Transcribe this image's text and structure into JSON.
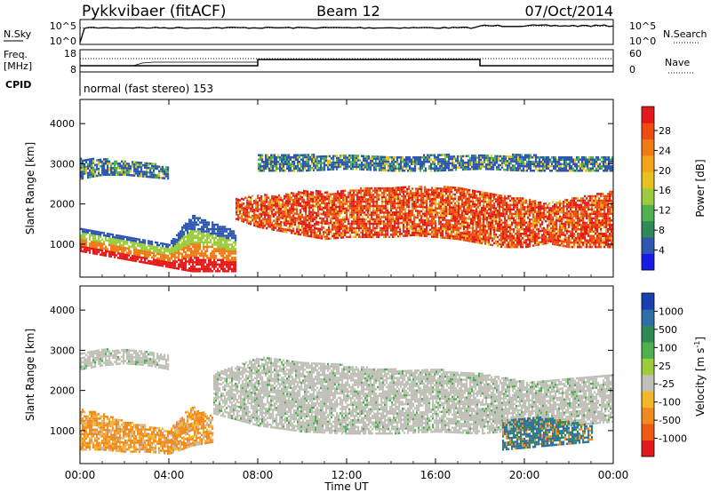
{
  "header": {
    "station": "Pykkvibaer (fitACF)",
    "beam": "Beam 12",
    "date": "07/Oct/2014"
  },
  "noise_panel": {
    "left_label": "N.Sky",
    "right_label": "N.Search",
    "left_ticks": [
      "10^5",
      "10^0"
    ],
    "right_ticks": [
      "10^5",
      "10^0"
    ]
  },
  "freq_panel": {
    "left_label_line1": "Freq.",
    "left_label_line2": "[MHz]",
    "right_label": "Nave",
    "left_ticks": [
      "18",
      "8"
    ],
    "right_ticks": [
      "60",
      "0"
    ],
    "cpid_label": "CPID",
    "cpid_text": "normal (fast stereo) 153"
  },
  "chart_data": [
    {
      "type": "heatmap",
      "quantity": "Power",
      "ylabel": "Slant Range [km]",
      "ylim": [
        180,
        4600
      ],
      "yticks": [
        "1000",
        "2000",
        "3000",
        "4000"
      ],
      "colorbar_label": "Power [dB]",
      "colorbar_ticks": [
        "4",
        "8",
        "12",
        "16",
        "20",
        "24",
        "28"
      ],
      "colorbar_colors": [
        "#1a1ae6",
        "#2e57b0",
        "#2e8a57",
        "#4fb04f",
        "#9ccc3c",
        "#e8c020",
        "#f5a31c",
        "#f07a14",
        "#ee4c10",
        "#e41a1a"
      ],
      "bands": [
        {
          "t": [
            0,
            1,
            2,
            3,
            4,
            5,
            6,
            7
          ],
          "lo": [
            800,
            700,
            600,
            500,
            400,
            300,
            300,
            300
          ],
          "hi": [
            1400,
            1300,
            1200,
            1100,
            1000,
            1700,
            1500,
            1300
          ],
          "level": "mixed"
        },
        {
          "t": [
            7,
            8,
            9,
            10,
            11,
            12,
            13,
            14,
            15,
            16,
            17,
            18,
            19,
            20,
            21,
            22,
            23,
            24
          ],
          "lo": [
            1600,
            1400,
            1300,
            1200,
            1100,
            1150,
            1150,
            1150,
            1200,
            1150,
            1100,
            1000,
            900,
            900,
            1000,
            900,
            900,
            900
          ],
          "hi": [
            2100,
            2200,
            2200,
            2300,
            2300,
            2300,
            2400,
            2400,
            2400,
            2400,
            2400,
            2300,
            2200,
            2100,
            2000,
            2100,
            2200,
            2300
          ],
          "level": "strong"
        },
        {
          "t": [
            0,
            1,
            2,
            3,
            4
          ],
          "lo": [
            2600,
            2700,
            2700,
            2650,
            2600
          ],
          "hi": [
            3100,
            3100,
            3050,
            3000,
            2900
          ],
          "level": "weak"
        },
        {
          "t": [
            8,
            10,
            12,
            14,
            16,
            18,
            20,
            22,
            24
          ],
          "lo": [
            2800,
            2800,
            2850,
            2800,
            2800,
            2850,
            2800,
            2800,
            2800
          ],
          "hi": [
            3200,
            3200,
            3200,
            3150,
            3200,
            3200,
            3200,
            3150,
            3150
          ],
          "level": "weak"
        }
      ]
    },
    {
      "type": "heatmap",
      "quantity": "Velocity",
      "ylabel": "Slant Range [km]",
      "ylim": [
        180,
        4600
      ],
      "yticks": [
        "1000",
        "2000",
        "3000",
        "4000"
      ],
      "colorbar_label": "Velocity [m s",
      "colorbar_label_sup": "-1",
      "colorbar_label_end": "]",
      "colorbar_ticks": [
        "1000",
        "500",
        "100",
        "25",
        "-25",
        "-100",
        "-500",
        "-1000"
      ],
      "colorbar_colors": [
        "#1a3fb0",
        "#2e6fa6",
        "#2e8a57",
        "#4fb04f",
        "#9ccc3c",
        "#c0c0b8",
        "#f5b42a",
        "#f08a20",
        "#ee5a14",
        "#e41a1a"
      ],
      "bands": [
        {
          "t": [
            0,
            1,
            2,
            3,
            4,
            5,
            6
          ],
          "lo": [
            500,
            500,
            450,
            450,
            400,
            600,
            700
          ],
          "hi": [
            1500,
            1400,
            1200,
            1100,
            1000,
            1600,
            1300
          ],
          "level": "negative"
        },
        {
          "t": [
            6,
            8,
            10,
            12,
            14,
            16,
            18,
            20,
            22,
            24
          ],
          "lo": [
            1400,
            1100,
            950,
            900,
            900,
            950,
            900,
            1000,
            1100,
            1200
          ],
          "hi": [
            2400,
            2800,
            2700,
            2600,
            2500,
            2500,
            2400,
            2200,
            2300,
            2400
          ],
          "level": "ground"
        },
        {
          "t": [
            0,
            1,
            2,
            3,
            4
          ],
          "lo": [
            2500,
            2600,
            2650,
            2600,
            2500
          ],
          "hi": [
            2900,
            3000,
            3000,
            2950,
            2850
          ],
          "level": "ground"
        },
        {
          "t": [
            19,
            20,
            21,
            22,
            23
          ],
          "lo": [
            500,
            550,
            600,
            650,
            700
          ],
          "hi": [
            1200,
            1300,
            1300,
            1200,
            1100
          ],
          "level": "positive"
        }
      ]
    }
  ],
  "x_axis": {
    "ticks": [
      "00:00",
      "04:00",
      "08:00",
      "12:00",
      "16:00",
      "20:00",
      "00:00"
    ],
    "label": "Time UT",
    "range_hours": [
      0,
      24
    ]
  }
}
